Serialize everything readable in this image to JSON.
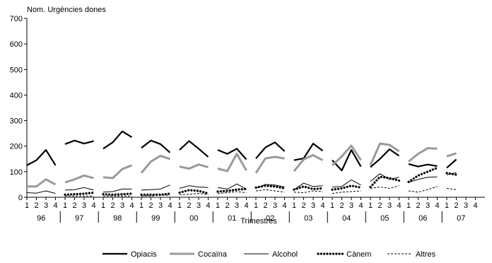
{
  "chart_data": {
    "type": "line",
    "title": "Nom. Urgències dones",
    "xlabel": "Trimestres",
    "ylabel": "",
    "ylim": [
      0,
      700
    ],
    "yticks": [
      0,
      100,
      200,
      300,
      400,
      500,
      600,
      700
    ],
    "quarter_labels": [
      "1",
      "2",
      "3",
      "4"
    ],
    "years": [
      "96",
      "97",
      "98",
      "99",
      "00",
      "01",
      "02",
      "03",
      "04",
      "05",
      "06",
      "07"
    ],
    "grid": false,
    "legend": "bottom",
    "series": [
      {
        "name": "Opiacis",
        "style": "thick",
        "color": "#000000",
        "values": [
          [
            125,
            145,
            185,
            125
          ],
          [
            208,
            222,
            210,
            220
          ],
          [
            190,
            215,
            258,
            235
          ],
          [
            193,
            222,
            208,
            175
          ],
          [
            185,
            220,
            190,
            158
          ],
          [
            185,
            170,
            190,
            148
          ],
          [
            152,
            195,
            215,
            180
          ],
          [
            145,
            152,
            210,
            182
          ],
          [
            145,
            105,
            185,
            120
          ],
          [
            118,
            150,
            188,
            162
          ],
          [
            130,
            120,
            128,
            122
          ],
          [
            115,
            148,
            null,
            null
          ]
        ]
      },
      {
        "name": "Cocaïna",
        "style": "gray",
        "color": "#9a9a9a",
        "values": [
          [
            42,
            42,
            70,
            50
          ],
          [
            58,
            70,
            85,
            75
          ],
          [
            78,
            75,
            110,
            125
          ],
          [
            95,
            140,
            162,
            150
          ],
          [
            120,
            112,
            128,
            118
          ],
          [
            112,
            102,
            170,
            105
          ],
          [
            95,
            152,
            158,
            152
          ],
          [
            102,
            148,
            165,
            145
          ],
          [
            125,
            160,
            202,
            145
          ],
          [
            125,
            210,
            205,
            180
          ],
          [
            140,
            170,
            192,
            190
          ],
          [
            160,
            172,
            null,
            null
          ]
        ]
      },
      {
        "name": "Alcohol",
        "style": "thin",
        "color": "#000000",
        "values": [
          [
            18,
            16,
            25,
            15
          ],
          [
            28,
            30,
            38,
            28
          ],
          [
            20,
            22,
            32,
            32
          ],
          [
            28,
            30,
            32,
            48
          ],
          [
            35,
            45,
            40,
            38
          ],
          [
            38,
            32,
            52,
            32
          ],
          [
            35,
            50,
            48,
            40
          ],
          [
            30,
            55,
            42,
            45
          ],
          [
            40,
            42,
            68,
            48
          ],
          [
            62,
            92,
            70,
            78
          ],
          [
            58,
            70,
            78,
            80
          ],
          [
            88,
            96,
            null,
            null
          ]
        ]
      },
      {
        "name": "Cànem",
        "style": "dotted",
        "color": "#000000",
        "values": [
          [
            null,
            null,
            null,
            null
          ],
          [
            10,
            12,
            14,
            18
          ],
          [
            12,
            10,
            12,
            14
          ],
          [
            10,
            10,
            10,
            14
          ],
          [
            18,
            28,
            25,
            15
          ],
          [
            22,
            25,
            30,
            32
          ],
          [
            38,
            45,
            42,
            35
          ],
          [
            30,
            42,
            32,
            35
          ],
          [
            30,
            35,
            45,
            38
          ],
          [
            40,
            80,
            75,
            65
          ],
          [
            60,
            85,
            100,
            115
          ],
          [
            95,
            88,
            null,
            null
          ]
        ]
      },
      {
        "name": "Altres",
        "style": "dashed",
        "color": "#000000",
        "values": [
          [
            null,
            null,
            null,
            null
          ],
          [
            5,
            5,
            5,
            5
          ],
          [
            5,
            5,
            5,
            5
          ],
          [
            5,
            5,
            8,
            8
          ],
          [
            10,
            12,
            15,
            10
          ],
          [
            15,
            18,
            22,
            18
          ],
          [
            25,
            30,
            25,
            20
          ],
          [
            20,
            18,
            25,
            22
          ],
          [
            15,
            20,
            22,
            25
          ],
          [
            35,
            40,
            35,
            45
          ],
          [
            25,
            20,
            30,
            42
          ],
          [
            35,
            30,
            null,
            null
          ]
        ]
      }
    ]
  }
}
